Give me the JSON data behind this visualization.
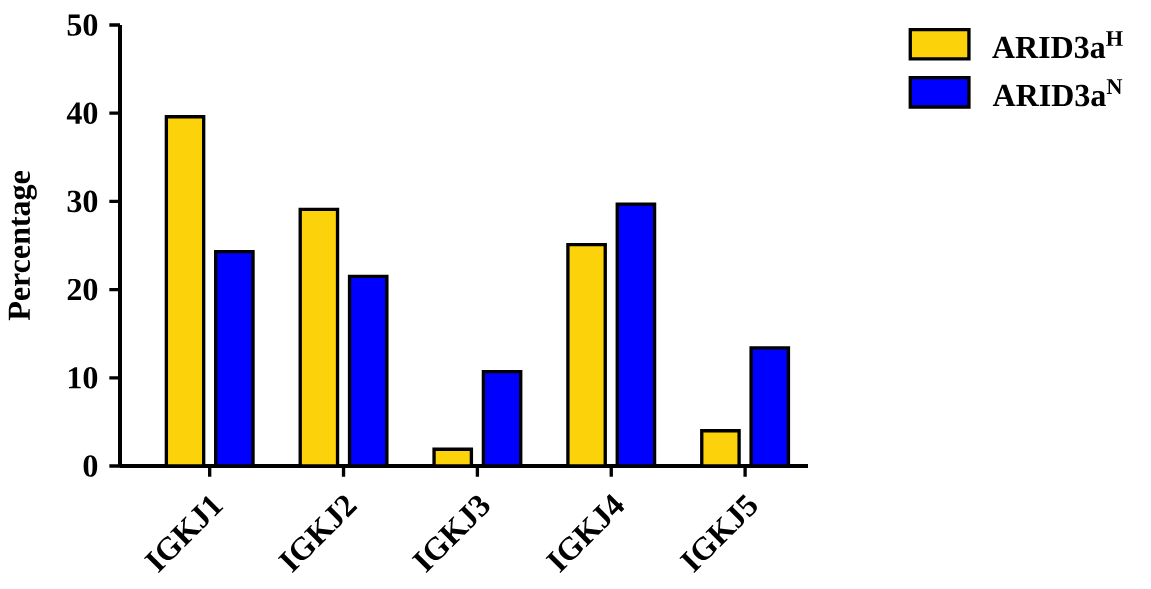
{
  "chart_data": {
    "type": "bar",
    "ylabel": "Percentage",
    "categories": [
      "IGKJ1",
      "IGKJ2",
      "IGKJ3",
      "IGKJ4",
      "IGKJ5"
    ],
    "series": [
      {
        "name": "ARID3a$^{H}$",
        "color": "#fcd20a",
        "values": [
          39.6,
          29.1,
          1.9,
          25.1,
          4.0
        ]
      },
      {
        "name": "ARID3a$^{N}$",
        "color": "#0000ff",
        "values": [
          24.3,
          21.5,
          10.7,
          29.7,
          13.4
        ]
      }
    ],
    "ylim": [
      0,
      50
    ],
    "yticks": [
      0,
      10,
      20,
      30,
      40,
      50
    ],
    "legend": "top right"
  }
}
